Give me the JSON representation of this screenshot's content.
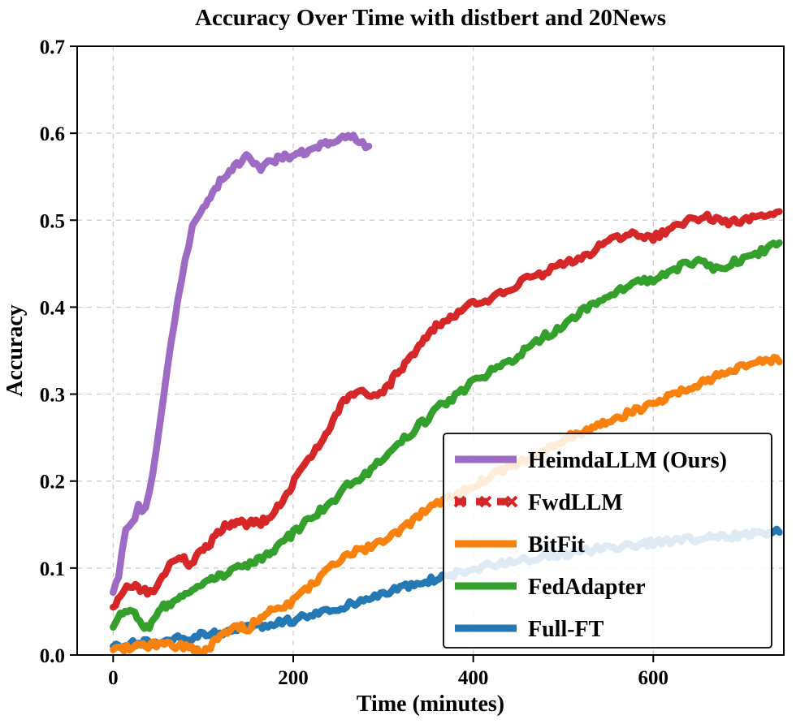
{
  "chart_data": {
    "type": "line",
    "title": "Accuracy Over Time with distbert and 20News",
    "xlabel": "Time (minutes)",
    "ylabel": "Accuracy",
    "xlim": [
      -40,
      745
    ],
    "ylim": [
      0.0,
      0.7
    ],
    "xticks": [
      0,
      200,
      400,
      600
    ],
    "yticks": [
      0.0,
      0.1,
      0.2,
      0.3,
      0.4,
      0.5,
      0.6,
      0.7
    ],
    "grid": true,
    "grid_style": "dashed",
    "legend_position": "lower right",
    "colors": {
      "HeimdaLLM (Ours)": "#9d6bc4",
      "FwdLLM": "#d62728",
      "BitFit": "#f8820d",
      "FedAdapter": "#33a02c",
      "Full-FT": "#2479b5"
    },
    "series": [
      {
        "name": "HeimdaLLM (Ours)",
        "color": "#9d6bc4",
        "linestyle": "solid",
        "points": [
          [
            0,
            0.072
          ],
          [
            6,
            0.09
          ],
          [
            10,
            0.118
          ],
          [
            14,
            0.143
          ],
          [
            18,
            0.152
          ],
          [
            24,
            0.158
          ],
          [
            28,
            0.17
          ],
          [
            32,
            0.163
          ],
          [
            36,
            0.168
          ],
          [
            40,
            0.185
          ],
          [
            44,
            0.21
          ],
          [
            48,
            0.24
          ],
          [
            52,
            0.265
          ],
          [
            56,
            0.295
          ],
          [
            60,
            0.325
          ],
          [
            64,
            0.355
          ],
          [
            68,
            0.385
          ],
          [
            72,
            0.41
          ],
          [
            76,
            0.432
          ],
          [
            80,
            0.455
          ],
          [
            84,
            0.472
          ],
          [
            88,
            0.49
          ],
          [
            92,
            0.5
          ],
          [
            96,
            0.508
          ],
          [
            100,
            0.515
          ],
          [
            108,
            0.527
          ],
          [
            116,
            0.54
          ],
          [
            124,
            0.55
          ],
          [
            132,
            0.558
          ],
          [
            140,
            0.565
          ],
          [
            148,
            0.572
          ],
          [
            156,
            0.568
          ],
          [
            164,
            0.561
          ],
          [
            172,
            0.565
          ],
          [
            180,
            0.569
          ],
          [
            188,
            0.572
          ],
          [
            196,
            0.574
          ],
          [
            204,
            0.577
          ],
          [
            212,
            0.578
          ],
          [
            220,
            0.582
          ],
          [
            228,
            0.584
          ],
          [
            236,
            0.587
          ],
          [
            244,
            0.59
          ],
          [
            252,
            0.592
          ],
          [
            258,
            0.595
          ],
          [
            264,
            0.597
          ],
          [
            270,
            0.592
          ],
          [
            277,
            0.587
          ],
          [
            284,
            0.585
          ]
        ]
      },
      {
        "name": "FwdLLM",
        "color": "#d62728",
        "linestyle": "dashed",
        "marker": "x",
        "points": [
          [
            0,
            0.055
          ],
          [
            8,
            0.07
          ],
          [
            15,
            0.083
          ],
          [
            22,
            0.08
          ],
          [
            30,
            0.075
          ],
          [
            38,
            0.072
          ],
          [
            45,
            0.07
          ],
          [
            52,
            0.085
          ],
          [
            60,
            0.1
          ],
          [
            68,
            0.11
          ],
          [
            76,
            0.113
          ],
          [
            84,
            0.105
          ],
          [
            92,
            0.112
          ],
          [
            100,
            0.12
          ],
          [
            108,
            0.128
          ],
          [
            116,
            0.14
          ],
          [
            124,
            0.147
          ],
          [
            132,
            0.15
          ],
          [
            140,
            0.152
          ],
          [
            148,
            0.15
          ],
          [
            156,
            0.153
          ],
          [
            164,
            0.152
          ],
          [
            172,
            0.158
          ],
          [
            180,
            0.168
          ],
          [
            188,
            0.178
          ],
          [
            196,
            0.19
          ],
          [
            204,
            0.205
          ],
          [
            212,
            0.218
          ],
          [
            220,
            0.228
          ],
          [
            228,
            0.24
          ],
          [
            236,
            0.252
          ],
          [
            244,
            0.268
          ],
          [
            250,
            0.282
          ],
          [
            256,
            0.292
          ],
          [
            262,
            0.296
          ],
          [
            270,
            0.3
          ],
          [
            280,
            0.302
          ],
          [
            290,
            0.3
          ],
          [
            300,
            0.303
          ],
          [
            308,
            0.312
          ],
          [
            316,
            0.325
          ],
          [
            324,
            0.335
          ],
          [
            332,
            0.345
          ],
          [
            340,
            0.357
          ],
          [
            348,
            0.367
          ],
          [
            356,
            0.375
          ],
          [
            364,
            0.382
          ],
          [
            372,
            0.388
          ],
          [
            380,
            0.392
          ],
          [
            390,
            0.4
          ],
          [
            400,
            0.403
          ],
          [
            410,
            0.406
          ],
          [
            420,
            0.41
          ],
          [
            430,
            0.415
          ],
          [
            440,
            0.42
          ],
          [
            450,
            0.427
          ],
          [
            460,
            0.432
          ],
          [
            470,
            0.435
          ],
          [
            480,
            0.44
          ],
          [
            490,
            0.445
          ],
          [
            500,
            0.45
          ],
          [
            510,
            0.453
          ],
          [
            520,
            0.458
          ],
          [
            530,
            0.463
          ],
          [
            540,
            0.47
          ],
          [
            550,
            0.476
          ],
          [
            560,
            0.48
          ],
          [
            570,
            0.484
          ],
          [
            580,
            0.483
          ],
          [
            590,
            0.478
          ],
          [
            600,
            0.48
          ],
          [
            610,
            0.485
          ],
          [
            620,
            0.49
          ],
          [
            630,
            0.495
          ],
          [
            640,
            0.5
          ],
          [
            650,
            0.503
          ],
          [
            660,
            0.505
          ],
          [
            670,
            0.5
          ],
          [
            680,
            0.497
          ],
          [
            690,
            0.498
          ],
          [
            700,
            0.5
          ],
          [
            710,
            0.503
          ],
          [
            720,
            0.505
          ],
          [
            730,
            0.508
          ],
          [
            740,
            0.51
          ]
        ]
      },
      {
        "name": "BitFit",
        "color": "#f8820d",
        "linestyle": "solid",
        "points": [
          [
            0,
            0.006
          ],
          [
            15,
            0.008
          ],
          [
            30,
            0.01
          ],
          [
            45,
            0.012
          ],
          [
            60,
            0.012
          ],
          [
            75,
            0.01
          ],
          [
            90,
            0.006
          ],
          [
            100,
            0.004
          ],
          [
            108,
            0.01
          ],
          [
            116,
            0.018
          ],
          [
            124,
            0.025
          ],
          [
            132,
            0.03
          ],
          [
            140,
            0.033
          ],
          [
            148,
            0.028
          ],
          [
            156,
            0.036
          ],
          [
            164,
            0.043
          ],
          [
            172,
            0.048
          ],
          [
            180,
            0.052
          ],
          [
            190,
            0.057
          ],
          [
            200,
            0.062
          ],
          [
            210,
            0.07
          ],
          [
            220,
            0.08
          ],
          [
            230,
            0.09
          ],
          [
            240,
            0.1
          ],
          [
            250,
            0.107
          ],
          [
            260,
            0.115
          ],
          [
            270,
            0.12
          ],
          [
            280,
            0.122
          ],
          [
            290,
            0.126
          ],
          [
            300,
            0.131
          ],
          [
            310,
            0.136
          ],
          [
            320,
            0.143
          ],
          [
            330,
            0.152
          ],
          [
            340,
            0.161
          ],
          [
            350,
            0.168
          ],
          [
            360,
            0.173
          ],
          [
            370,
            0.178
          ],
          [
            380,
            0.183
          ],
          [
            390,
            0.189
          ],
          [
            400,
            0.195
          ],
          [
            415,
            0.203
          ],
          [
            430,
            0.211
          ],
          [
            445,
            0.219
          ],
          [
            460,
            0.226
          ],
          [
            475,
            0.233
          ],
          [
            490,
            0.242
          ],
          [
            505,
            0.25
          ],
          [
            520,
            0.257
          ],
          [
            535,
            0.263
          ],
          [
            550,
            0.269
          ],
          [
            565,
            0.275
          ],
          [
            580,
            0.281
          ],
          [
            595,
            0.288
          ],
          [
            610,
            0.294
          ],
          [
            625,
            0.3
          ],
          [
            640,
            0.306
          ],
          [
            655,
            0.314
          ],
          [
            670,
            0.32
          ],
          [
            685,
            0.326
          ],
          [
            700,
            0.331
          ],
          [
            715,
            0.337
          ],
          [
            728,
            0.341
          ],
          [
            740,
            0.337
          ]
        ]
      },
      {
        "name": "FedAdapter",
        "color": "#33a02c",
        "linestyle": "solid",
        "points": [
          [
            0,
            0.032
          ],
          [
            8,
            0.045
          ],
          [
            16,
            0.052
          ],
          [
            24,
            0.046
          ],
          [
            32,
            0.036
          ],
          [
            40,
            0.03
          ],
          [
            48,
            0.045
          ],
          [
            56,
            0.055
          ],
          [
            64,
            0.06
          ],
          [
            72,
            0.065
          ],
          [
            80,
            0.07
          ],
          [
            88,
            0.074
          ],
          [
            96,
            0.078
          ],
          [
            104,
            0.083
          ],
          [
            112,
            0.088
          ],
          [
            120,
            0.092
          ],
          [
            128,
            0.094
          ],
          [
            136,
            0.098
          ],
          [
            144,
            0.102
          ],
          [
            152,
            0.106
          ],
          [
            160,
            0.108
          ],
          [
            168,
            0.113
          ],
          [
            176,
            0.12
          ],
          [
            184,
            0.126
          ],
          [
            192,
            0.133
          ],
          [
            200,
            0.14
          ],
          [
            210,
            0.149
          ],
          [
            220,
            0.158
          ],
          [
            230,
            0.166
          ],
          [
            240,
            0.175
          ],
          [
            250,
            0.183
          ],
          [
            260,
            0.194
          ],
          [
            270,
            0.2
          ],
          [
            280,
            0.208
          ],
          [
            290,
            0.216
          ],
          [
            300,
            0.227
          ],
          [
            310,
            0.235
          ],
          [
            320,
            0.247
          ],
          [
            330,
            0.255
          ],
          [
            340,
            0.264
          ],
          [
            350,
            0.272
          ],
          [
            360,
            0.284
          ],
          [
            370,
            0.291
          ],
          [
            380,
            0.297
          ],
          [
            390,
            0.305
          ],
          [
            400,
            0.314
          ],
          [
            410,
            0.32
          ],
          [
            420,
            0.327
          ],
          [
            430,
            0.332
          ],
          [
            440,
            0.338
          ],
          [
            450,
            0.345
          ],
          [
            460,
            0.352
          ],
          [
            470,
            0.36
          ],
          [
            480,
            0.367
          ],
          [
            490,
            0.372
          ],
          [
            500,
            0.378
          ],
          [
            510,
            0.385
          ],
          [
            520,
            0.394
          ],
          [
            530,
            0.4
          ],
          [
            540,
            0.407
          ],
          [
            550,
            0.412
          ],
          [
            560,
            0.417
          ],
          [
            570,
            0.422
          ],
          [
            580,
            0.427
          ],
          [
            590,
            0.43
          ],
          [
            600,
            0.432
          ],
          [
            610,
            0.437
          ],
          [
            620,
            0.442
          ],
          [
            630,
            0.447
          ],
          [
            640,
            0.45
          ],
          [
            650,
            0.452
          ],
          [
            660,
            0.448
          ],
          [
            670,
            0.443
          ],
          [
            680,
            0.446
          ],
          [
            690,
            0.452
          ],
          [
            700,
            0.456
          ],
          [
            710,
            0.46
          ],
          [
            720,
            0.464
          ],
          [
            730,
            0.469
          ],
          [
            740,
            0.474
          ]
        ]
      },
      {
        "name": "Full-FT",
        "color": "#2479b5",
        "linestyle": "solid",
        "points": [
          [
            0,
            0.01
          ],
          [
            25,
            0.013
          ],
          [
            50,
            0.016
          ],
          [
            75,
            0.019
          ],
          [
            100,
            0.023
          ],
          [
            125,
            0.027
          ],
          [
            150,
            0.031
          ],
          [
            175,
            0.035
          ],
          [
            200,
            0.04
          ],
          [
            225,
            0.047
          ],
          [
            250,
            0.054
          ],
          [
            275,
            0.062
          ],
          [
            300,
            0.071
          ],
          [
            325,
            0.079
          ],
          [
            350,
            0.085
          ],
          [
            375,
            0.092
          ],
          [
            400,
            0.099
          ],
          [
            425,
            0.104
          ],
          [
            450,
            0.108
          ],
          [
            475,
            0.112
          ],
          [
            500,
            0.116
          ],
          [
            525,
            0.12
          ],
          [
            550,
            0.123
          ],
          [
            575,
            0.126
          ],
          [
            600,
            0.129
          ],
          [
            625,
            0.131
          ],
          [
            650,
            0.134
          ],
          [
            675,
            0.136
          ],
          [
            700,
            0.138
          ],
          [
            720,
            0.14
          ],
          [
            740,
            0.141
          ]
        ]
      }
    ]
  }
}
